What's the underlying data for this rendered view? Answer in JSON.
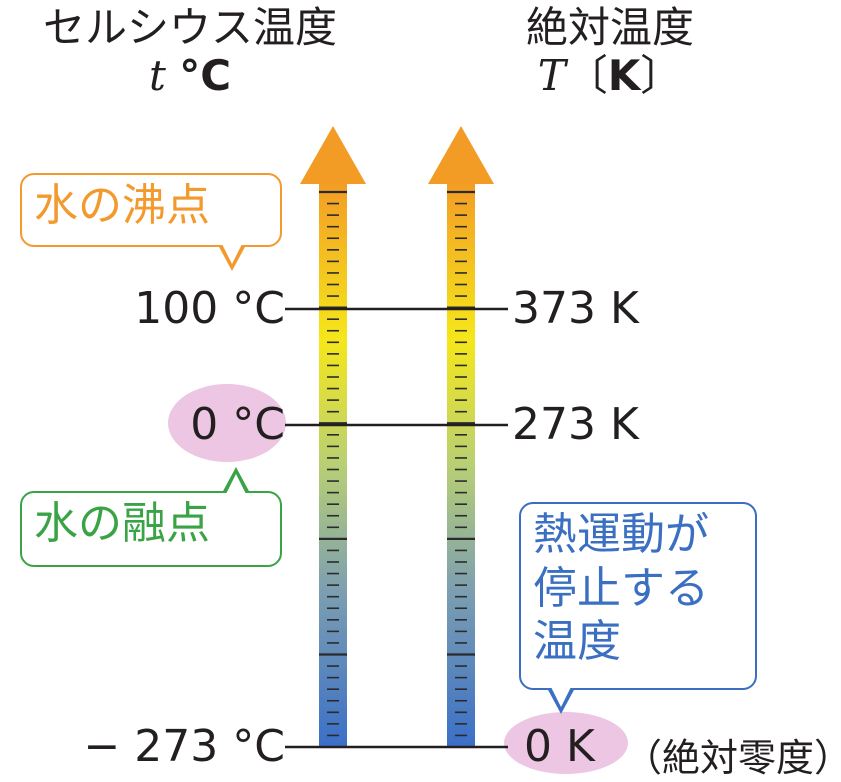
{
  "headers": {
    "celsius_title": "セルシウス温度",
    "celsius_symbol": "t",
    "celsius_unit": "°C",
    "kelvin_title": "絶対温度",
    "kelvin_symbol": "T",
    "kelvin_unit_open": "〔",
    "kelvin_unit": "K",
    "kelvin_unit_close": "〕"
  },
  "celsius_labels": [
    {
      "value": 100,
      "text": "100 °C"
    },
    {
      "value": 0,
      "text": "0 °C"
    },
    {
      "value": -273,
      "text": "− 273 °C"
    }
  ],
  "kelvin_labels": [
    {
      "value": 373,
      "text": "373 K"
    },
    {
      "value": 273,
      "text": "273 K"
    },
    {
      "value": 0,
      "text": "0 K"
    }
  ],
  "kelvin_zero_note": "（絶対零度）",
  "callouts": {
    "boiling": "水の沸点",
    "melting": "水の融点",
    "absolute_zero": [
      "熱運動が",
      "停止する",
      "温度"
    ]
  },
  "colors": {
    "boiling": "#f39a2e",
    "melting": "#3aa346",
    "absolute_zero": "#3a6fc2",
    "highlight": "#ecc6e3",
    "arrow_top": "#f39c25",
    "arrow_mid": "#f5e71a",
    "arrow_bottom": "#3a6fc8"
  }
}
